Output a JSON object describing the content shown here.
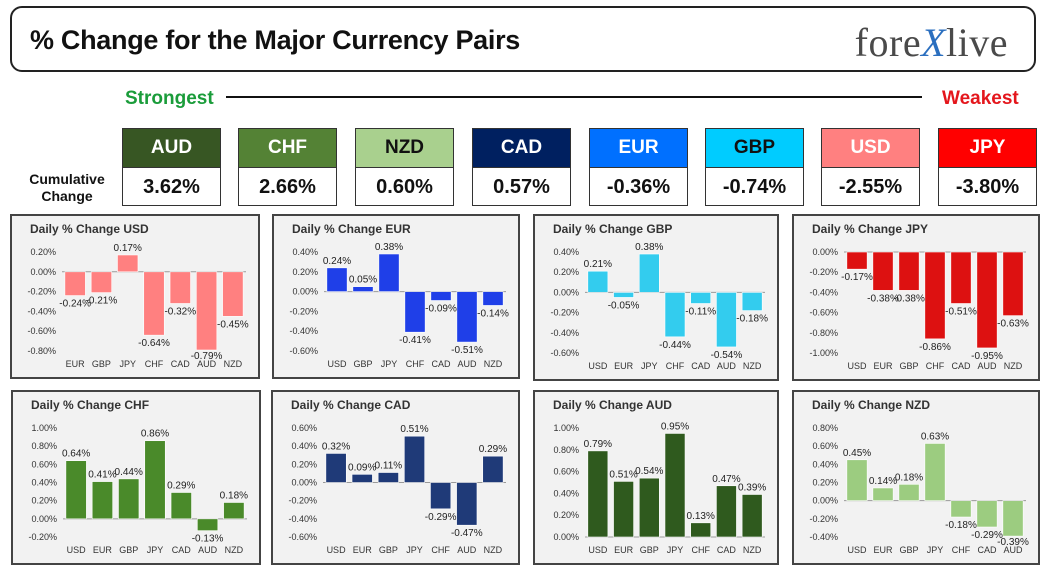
{
  "header": {
    "title": "% Change for the Major Currency Pairs",
    "logo_pre": "fore",
    "logo_x": "X",
    "logo_post": "live"
  },
  "ranking": {
    "strongest": "Strongest",
    "weakest": "Weakest",
    "cumulative_label_1": "Cumulative",
    "cumulative_label_2": "Change",
    "currencies": [
      {
        "code": "AUD",
        "value": "3.62%",
        "color": "#375623",
        "text": "#ffffff"
      },
      {
        "code": "CHF",
        "value": "2.66%",
        "color": "#548235",
        "text": "#ffffff"
      },
      {
        "code": "NZD",
        "value": "0.60%",
        "color": "#a9d08e",
        "text": "#111111"
      },
      {
        "code": "CAD",
        "value": "0.57%",
        "color": "#002060",
        "text": "#ffffff"
      },
      {
        "code": "EUR",
        "value": "-0.36%",
        "color": "#0070ff",
        "text": "#ffffff"
      },
      {
        "code": "GBP",
        "value": "-0.74%",
        "color": "#00ccff",
        "text": "#111111"
      },
      {
        "code": "USD",
        "value": "-2.55%",
        "color": "#ff8080",
        "text": "#ffffff"
      },
      {
        "code": "JPY",
        "value": "-3.80%",
        "color": "#ff0000",
        "text": "#ffffff"
      }
    ]
  },
  "chart_data": [
    {
      "type": "bar",
      "title": "Daily % Change USD",
      "categories": [
        "EUR",
        "GBP",
        "JPY",
        "CHF",
        "CAD",
        "AUD",
        "NZD"
      ],
      "values": [
        -0.24,
        -0.21,
        0.17,
        -0.64,
        -0.32,
        -0.79,
        -0.45
      ],
      "labels": [
        "-0.24%",
        "-0.21%",
        "0.17%",
        "-0.64%",
        "-0.32%",
        "-0.79%",
        "-0.45%"
      ],
      "ylim": [
        -0.8,
        0.2
      ],
      "yticks": [
        0.2,
        0.0,
        -0.2,
        -0.4,
        -0.6,
        -0.8
      ],
      "yticklabels": [
        "0.20%",
        "0.00%",
        "-0.20%",
        "-0.40%",
        "-0.60%",
        "-0.80%"
      ],
      "color": "#ff8080"
    },
    {
      "type": "bar",
      "title": "Daily % Change EUR",
      "categories": [
        "USD",
        "GBP",
        "JPY",
        "CHF",
        "CAD",
        "AUD",
        "NZD"
      ],
      "values": [
        0.24,
        0.05,
        0.38,
        -0.41,
        -0.09,
        -0.51,
        -0.14
      ],
      "labels": [
        "0.24%",
        "0.05%",
        "0.38%",
        "-0.41%",
        "-0.09%",
        "-0.51%",
        "-0.14%"
      ],
      "ylim": [
        -0.6,
        0.4
      ],
      "yticks": [
        0.4,
        0.2,
        0.0,
        -0.2,
        -0.4,
        -0.6
      ],
      "yticklabels": [
        "0.40%",
        "0.20%",
        "0.00%",
        "-0.20%",
        "-0.40%",
        "-0.60%"
      ],
      "color": "#1f3fe8"
    },
    {
      "type": "bar",
      "title": "Daily % Change GBP",
      "categories": [
        "USD",
        "EUR",
        "JPY",
        "CHF",
        "CAD",
        "AUD",
        "NZD"
      ],
      "values": [
        0.21,
        -0.05,
        0.38,
        -0.44,
        -0.11,
        -0.54,
        -0.18
      ],
      "labels": [
        "0.21%",
        "-0.05%",
        "0.38%",
        "-0.44%",
        "-0.11%",
        "-0.54%",
        "-0.18%"
      ],
      "ylim": [
        -0.6,
        0.4
      ],
      "yticks": [
        0.4,
        0.2,
        0.0,
        -0.2,
        -0.4,
        -0.6
      ],
      "yticklabels": [
        "0.40%",
        "0.20%",
        "0.00%",
        "-0.20%",
        "-0.40%",
        "-0.60%"
      ],
      "color": "#33ccee"
    },
    {
      "type": "bar",
      "title": "Daily % Change JPY",
      "categories": [
        "USD",
        "EUR",
        "GBP",
        "CHF",
        "CAD",
        "AUD",
        "NZD"
      ],
      "values": [
        -0.17,
        -0.38,
        -0.38,
        -0.86,
        -0.51,
        -0.95,
        -0.63
      ],
      "labels": [
        "-0.17%",
        "-0.38%",
        "-0.38%",
        "-0.86%",
        "-0.51%",
        "-0.95%",
        "-0.63%"
      ],
      "ylim": [
        -1.0,
        0.0
      ],
      "yticks": [
        0.0,
        -0.2,
        -0.4,
        -0.6,
        -0.8,
        -1.0
      ],
      "yticklabels": [
        "0.00%",
        "-0.20%",
        "-0.40%",
        "-0.60%",
        "-0.80%",
        "-1.00%"
      ],
      "color": "#dd1111"
    },
    {
      "type": "bar",
      "title": "Daily % Change CHF",
      "categories": [
        "USD",
        "EUR",
        "GBP",
        "JPY",
        "CAD",
        "AUD",
        "NZD"
      ],
      "values": [
        0.64,
        0.41,
        0.44,
        0.86,
        0.29,
        -0.13,
        0.18
      ],
      "labels": [
        "0.64%",
        "0.41%",
        "0.44%",
        "0.86%",
        "0.29%",
        "-0.13%",
        "0.18%"
      ],
      "ylim": [
        -0.2,
        1.0
      ],
      "yticks": [
        1.0,
        0.8,
        0.6,
        0.4,
        0.2,
        0.0,
        -0.2
      ],
      "yticklabels": [
        "1.00%",
        "0.80%",
        "0.60%",
        "0.40%",
        "0.20%",
        "0.00%",
        "-0.20%"
      ],
      "color": "#4a8a2a"
    },
    {
      "type": "bar",
      "title": "Daily % Change CAD",
      "categories": [
        "USD",
        "EUR",
        "GBP",
        "JPY",
        "CHF",
        "AUD",
        "NZD"
      ],
      "values": [
        0.32,
        0.09,
        0.11,
        0.51,
        -0.29,
        -0.47,
        0.29
      ],
      "labels": [
        "0.32%",
        "0.09%",
        "0.11%",
        "0.51%",
        "-0.29%",
        "-0.47%",
        "0.29%"
      ],
      "ylim": [
        -0.6,
        0.6
      ],
      "yticks": [
        0.6,
        0.4,
        0.2,
        0.0,
        -0.2,
        -0.4,
        -0.6
      ],
      "yticklabels": [
        "0.60%",
        "0.40%",
        "0.20%",
        "0.00%",
        "-0.20%",
        "-0.40%",
        "-0.60%"
      ],
      "color": "#1f3a78"
    },
    {
      "type": "bar",
      "title": "Daily % Change AUD",
      "categories": [
        "USD",
        "EUR",
        "GBP",
        "JPY",
        "CHF",
        "CAD",
        "NZD"
      ],
      "values": [
        0.79,
        0.51,
        0.54,
        0.95,
        0.13,
        0.47,
        0.39
      ],
      "labels": [
        "0.79%",
        "0.51%",
        "0.54%",
        "0.95%",
        "0.13%",
        "0.47%",
        "0.39%"
      ],
      "ylim": [
        0.0,
        1.0
      ],
      "yticks": [
        1.0,
        0.8,
        0.6,
        0.4,
        0.2,
        0.0
      ],
      "yticklabels": [
        "1.00%",
        "0.80%",
        "0.60%",
        "0.40%",
        "0.20%",
        "0.00%"
      ],
      "color": "#2f5a1e"
    },
    {
      "type": "bar",
      "title": "Daily % Change NZD",
      "categories": [
        "USD",
        "EUR",
        "GBP",
        "JPY",
        "CHF",
        "CAD",
        "AUD"
      ],
      "values": [
        0.45,
        0.14,
        0.18,
        0.63,
        -0.18,
        -0.29,
        -0.39
      ],
      "labels": [
        "0.45%",
        "0.14%",
        "0.18%",
        "0.63%",
        "-0.18%",
        "-0.29%",
        "-0.39%"
      ],
      "ylim": [
        -0.4,
        0.8
      ],
      "yticks": [
        0.8,
        0.6,
        0.4,
        0.2,
        0.0,
        -0.2,
        -0.4
      ],
      "yticklabels": [
        "0.80%",
        "0.60%",
        "0.40%",
        "0.20%",
        "0.00%",
        "-0.20%",
        "-0.40%"
      ],
      "color": "#9ccc80"
    }
  ]
}
